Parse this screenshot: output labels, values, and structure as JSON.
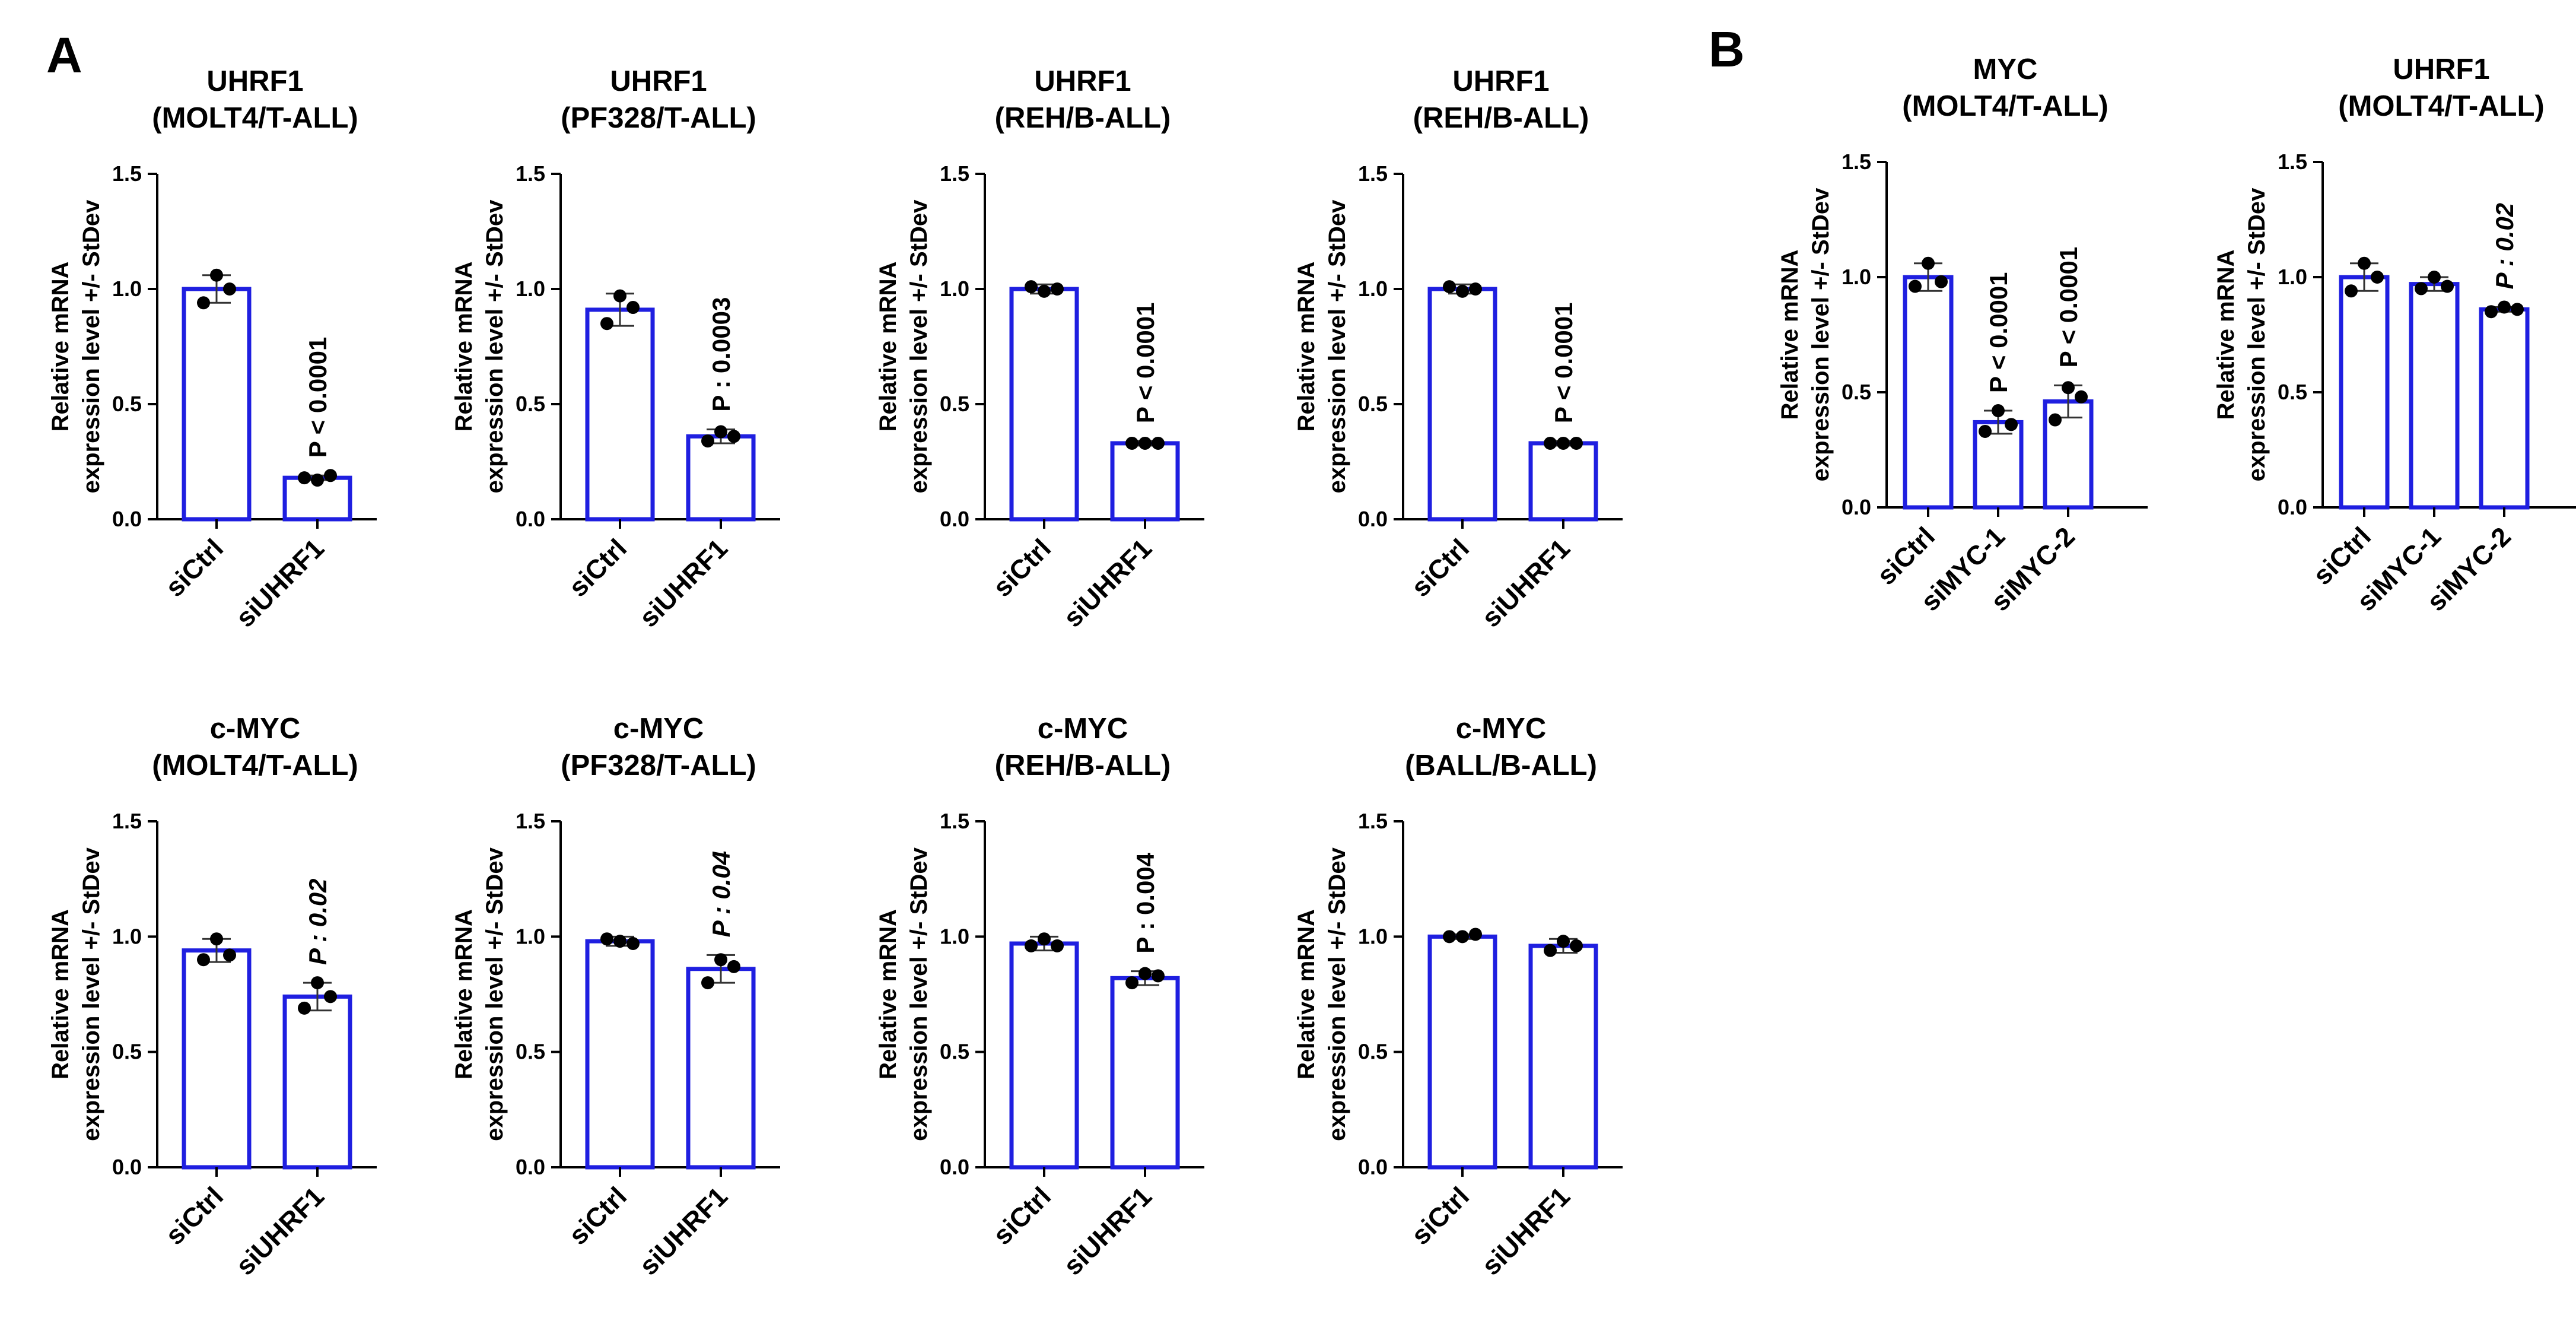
{
  "figure": {
    "panel_letters": [
      "A",
      "B"
    ],
    "bar_color": "#1f1fe0",
    "point_color": "#000000",
    "axis_color": "#000000"
  },
  "chart_data": [
    {
      "type": "bar",
      "panel": "A",
      "title": [
        "UHRF1",
        "(MOLT4/T-ALL)"
      ],
      "ylabel": [
        "Relative mRNA",
        "expression level +/- StDev"
      ],
      "xlabel": "",
      "ylim": [
        0,
        1.5
      ],
      "yticks": [
        0.0,
        0.5,
        1.0,
        1.5
      ],
      "ytick_labels": [
        "0.0",
        "0.5",
        "1.0",
        "1.5"
      ],
      "categories": [
        "siCtrl",
        "siUHRF1"
      ],
      "values": [
        1.0,
        0.18
      ],
      "errors": [
        0.06,
        0.01
      ],
      "points": [
        [
          1.06,
          0.94,
          1.0
        ],
        [
          0.17,
          0.18,
          0.19
        ]
      ],
      "annotations": [
        null,
        {
          "text": "P < 0.0001",
          "italic": false
        }
      ]
    },
    {
      "type": "bar",
      "panel": "A",
      "title": [
        "UHRF1",
        "(PF328/T-ALL)"
      ],
      "ylabel": [
        "Relative mRNA",
        "expression level +/- StDev"
      ],
      "xlabel": "",
      "ylim": [
        0,
        1.5
      ],
      "yticks": [
        0.0,
        0.5,
        1.0,
        1.5
      ],
      "ytick_labels": [
        "0.0",
        "0.5",
        "1.0",
        "1.5"
      ],
      "categories": [
        "siCtrl",
        "siUHRF1"
      ],
      "values": [
        0.91,
        0.36
      ],
      "errors": [
        0.07,
        0.03
      ],
      "points": [
        [
          0.97,
          0.85,
          0.92
        ],
        [
          0.38,
          0.34,
          0.36
        ]
      ],
      "annotations": [
        null,
        {
          "text": "P : 0.0003",
          "italic": false
        }
      ]
    },
    {
      "type": "bar",
      "panel": "A",
      "title": [
        "UHRF1",
        "(REH/B-ALL)"
      ],
      "ylabel": [
        "Relative mRNA",
        "expression level +/- StDev"
      ],
      "xlabel": "",
      "ylim": [
        0,
        1.5
      ],
      "yticks": [
        0.0,
        0.5,
        1.0,
        1.5
      ],
      "ytick_labels": [
        "0.0",
        "0.5",
        "1.0",
        "1.5"
      ],
      "categories": [
        "siCtrl",
        "siUHRF1"
      ],
      "values": [
        1.0,
        0.33
      ],
      "errors": [
        0.02,
        0.01
      ],
      "points": [
        [
          0.99,
          1.01,
          1.0
        ],
        [
          0.33,
          0.33,
          0.33
        ]
      ],
      "annotations": [
        null,
        {
          "text": "P < 0.0001",
          "italic": false
        }
      ]
    },
    {
      "type": "bar",
      "panel": "A",
      "title": [
        "UHRF1",
        "(REH/B-ALL)"
      ],
      "ylabel": [
        "Relative mRNA",
        "expression level +/- StDev"
      ],
      "xlabel": "",
      "ylim": [
        0,
        1.5
      ],
      "yticks": [
        0.0,
        0.5,
        1.0,
        1.5
      ],
      "ytick_labels": [
        "0.0",
        "0.5",
        "1.0",
        "1.5"
      ],
      "categories": [
        "siCtrl",
        "siUHRF1"
      ],
      "values": [
        1.0,
        0.33
      ],
      "errors": [
        0.02,
        0.01
      ],
      "points": [
        [
          0.99,
          1.01,
          1.0
        ],
        [
          0.33,
          0.33,
          0.33
        ]
      ],
      "annotations": [
        null,
        {
          "text": "P < 0.0001",
          "italic": false
        }
      ]
    },
    {
      "type": "bar",
      "panel": "B",
      "title": [
        "MYC",
        "(MOLT4/T-ALL)"
      ],
      "ylabel": [
        "Relative mRNA",
        "expression level +/- StDev"
      ],
      "xlabel": "",
      "ylim": [
        0,
        1.5
      ],
      "yticks": [
        0.0,
        0.5,
        1.0,
        1.5
      ],
      "ytick_labels": [
        "0.0",
        "0.5",
        "1.0",
        "1.5"
      ],
      "categories": [
        "siCtrl",
        "siMYC-1",
        "siMYC-2"
      ],
      "values": [
        1.0,
        0.37,
        0.46
      ],
      "errors": [
        0.06,
        0.05,
        0.07
      ],
      "points": [
        [
          1.06,
          0.96,
          0.98
        ],
        [
          0.42,
          0.33,
          0.36
        ],
        [
          0.52,
          0.38,
          0.48
        ]
      ],
      "annotations": [
        null,
        {
          "text": "P < 0.0001",
          "italic": false
        },
        {
          "text": "P < 0.0001",
          "italic": false
        }
      ]
    },
    {
      "type": "bar",
      "panel": "B",
      "title": [
        "UHRF1",
        "(MOLT4/T-ALL)"
      ],
      "ylabel": [
        "Relative mRNA",
        "expression level +/- StDev"
      ],
      "xlabel": "",
      "ylim": [
        0,
        1.5
      ],
      "yticks": [
        0.0,
        0.5,
        1.0,
        1.5
      ],
      "ytick_labels": [
        "0.0",
        "0.5",
        "1.0",
        "1.5"
      ],
      "categories": [
        "siCtrl",
        "siMYC-1",
        "siMYC-2"
      ],
      "values": [
        1.0,
        0.97,
        0.86
      ],
      "errors": [
        0.06,
        0.03,
        0.01
      ],
      "points": [
        [
          1.06,
          0.94,
          1.0
        ],
        [
          1.0,
          0.95,
          0.96
        ],
        [
          0.87,
          0.85,
          0.86
        ]
      ],
      "annotations": [
        null,
        null,
        {
          "text": "P : 0.02",
          "italic": true
        }
      ]
    },
    {
      "type": "bar",
      "panel": "A",
      "title": [
        "c-MYC",
        "(MOLT4/T-ALL)"
      ],
      "ylabel": [
        "Relative mRNA",
        "expression level +/- StDev"
      ],
      "xlabel": "",
      "ylim": [
        0,
        1.5
      ],
      "yticks": [
        0.0,
        0.5,
        1.0,
        1.5
      ],
      "ytick_labels": [
        "0.0",
        "0.5",
        "1.0",
        "1.5"
      ],
      "categories": [
        "siCtrl",
        "siUHRF1"
      ],
      "values": [
        0.94,
        0.74
      ],
      "errors": [
        0.05,
        0.06
      ],
      "points": [
        [
          0.99,
          0.9,
          0.92
        ],
        [
          0.8,
          0.69,
          0.74
        ]
      ],
      "annotations": [
        null,
        {
          "text": "P : 0.02",
          "italic": true
        }
      ]
    },
    {
      "type": "bar",
      "panel": "A",
      "title": [
        "c-MYC",
        "(PF328/T-ALL)"
      ],
      "ylabel": [
        "Relative mRNA",
        "expression level +/- StDev"
      ],
      "xlabel": "",
      "ylim": [
        0,
        1.5
      ],
      "yticks": [
        0.0,
        0.5,
        1.0,
        1.5
      ],
      "ytick_labels": [
        "0.0",
        "0.5",
        "1.0",
        "1.5"
      ],
      "categories": [
        "siCtrl",
        "siUHRF1"
      ],
      "values": [
        0.98,
        0.86
      ],
      "errors": [
        0.02,
        0.06
      ],
      "points": [
        [
          0.98,
          0.99,
          0.97
        ],
        [
          0.9,
          0.8,
          0.87
        ]
      ],
      "annotations": [
        null,
        {
          "text": "P : 0.04",
          "italic": true
        }
      ]
    },
    {
      "type": "bar",
      "panel": "A",
      "title": [
        "c-MYC",
        "(REH/B-ALL)"
      ],
      "ylabel": [
        "Relative mRNA",
        "expression level +/- StDev"
      ],
      "xlabel": "",
      "ylim": [
        0,
        1.5
      ],
      "yticks": [
        0.0,
        0.5,
        1.0,
        1.5
      ],
      "ytick_labels": [
        "0.0",
        "0.5",
        "1.0",
        "1.5"
      ],
      "categories": [
        "siCtrl",
        "siUHRF1"
      ],
      "values": [
        0.97,
        0.82
      ],
      "errors": [
        0.03,
        0.03
      ],
      "points": [
        [
          0.99,
          0.96,
          0.96
        ],
        [
          0.84,
          0.8,
          0.83
        ]
      ],
      "annotations": [
        null,
        {
          "text": "P : 0.004",
          "italic": false
        }
      ]
    },
    {
      "type": "bar",
      "panel": "A",
      "title": [
        "c-MYC",
        "(BALL/B-ALL)"
      ],
      "ylabel": [
        "Relative mRNA",
        "expression level +/- StDev"
      ],
      "xlabel": "",
      "ylim": [
        0,
        1.5
      ],
      "yticks": [
        0.0,
        0.5,
        1.0,
        1.5
      ],
      "ytick_labels": [
        "0.0",
        "0.5",
        "1.0",
        "1.5"
      ],
      "categories": [
        "siCtrl",
        "siUHRF1"
      ],
      "values": [
        1.0,
        0.96
      ],
      "errors": [
        0.01,
        0.03
      ],
      "points": [
        [
          1.0,
          1.0,
          1.01
        ],
        [
          0.98,
          0.94,
          0.96
        ]
      ],
      "annotations": [
        null,
        null
      ]
    }
  ]
}
